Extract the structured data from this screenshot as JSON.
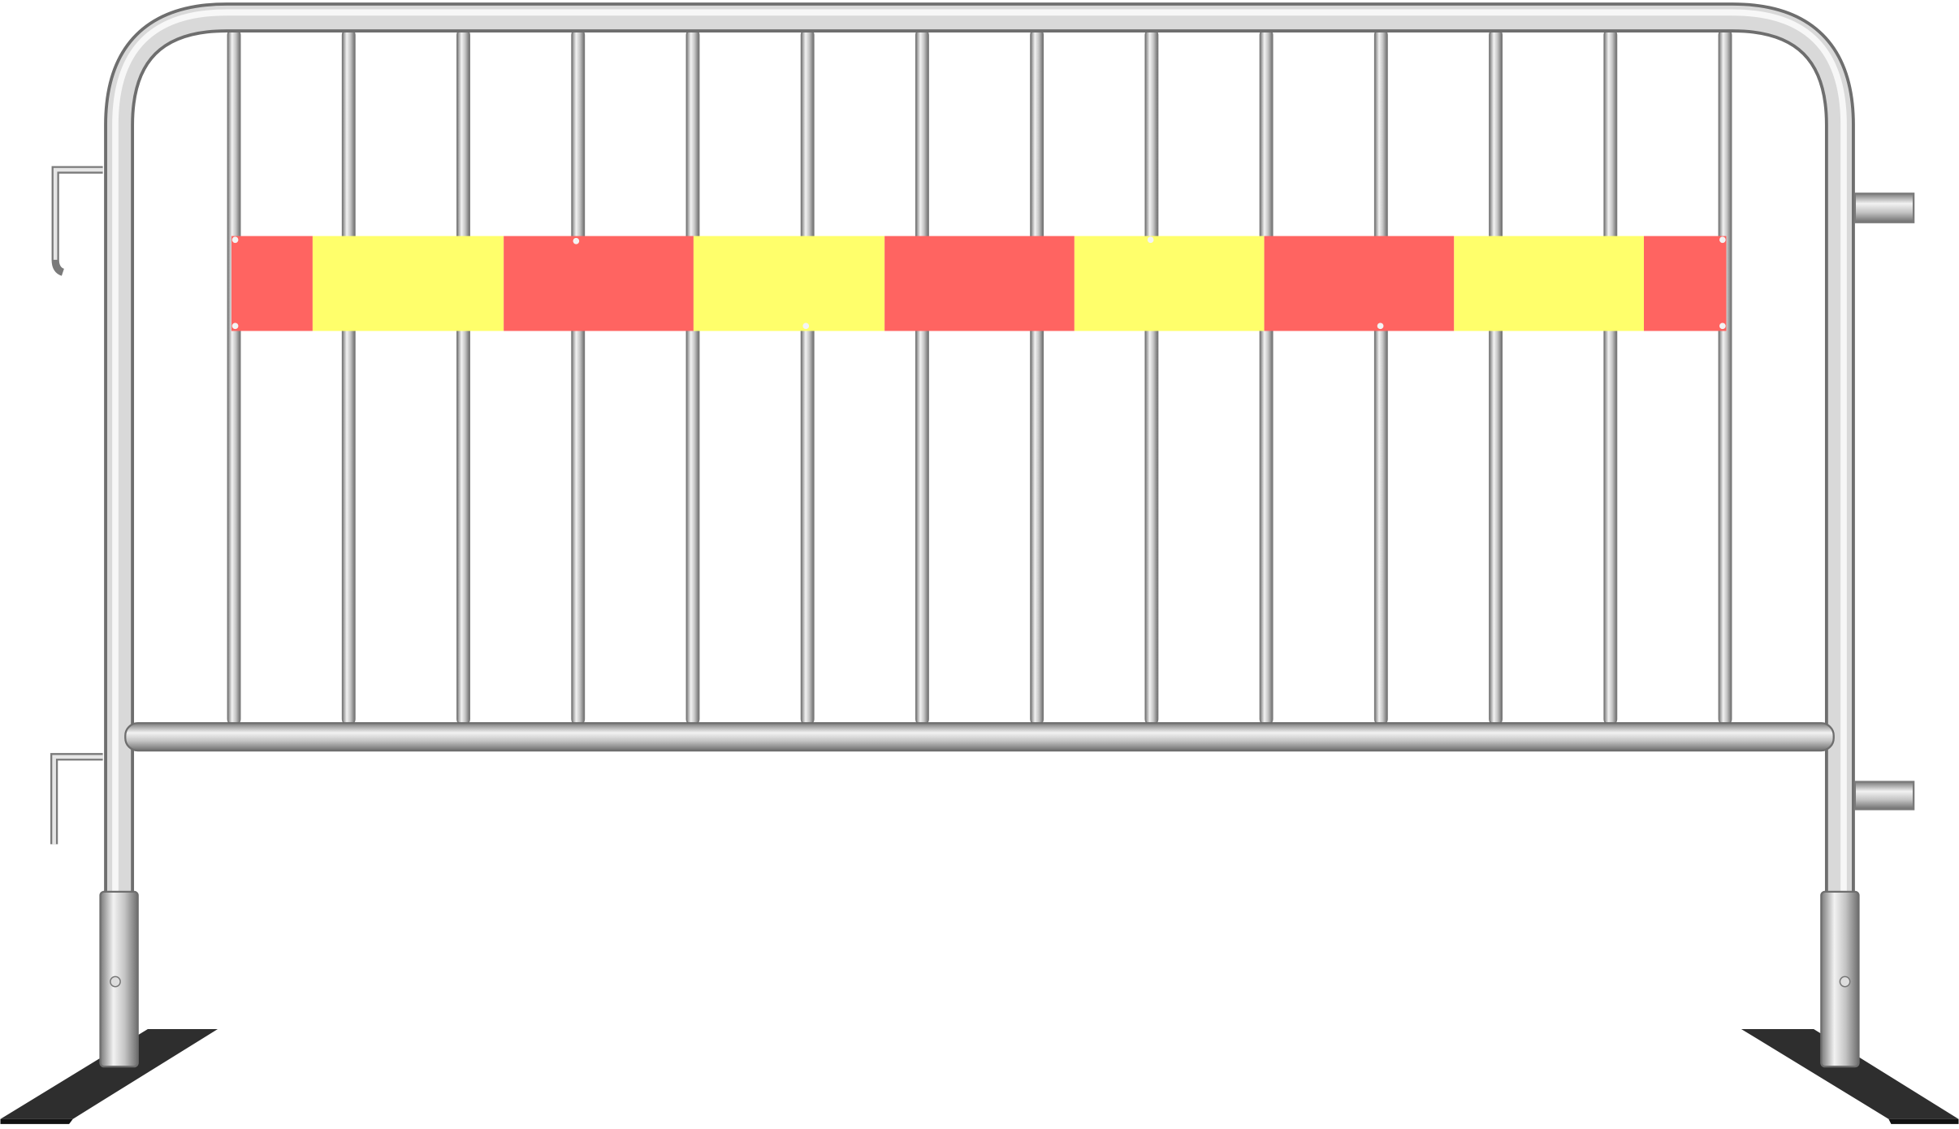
{
  "image": {
    "subject": "crowd-control-barrier",
    "colors": {
      "background": "#ffffff",
      "steel_light": "#f2f2f2",
      "steel_mid": "#c4c4c4",
      "steel_dark": "#7a7a7a",
      "banner_red": "#ff6461",
      "banner_yellow": "#ffff6b",
      "foot": "#2e2e2e"
    },
    "banner_pattern": [
      "red",
      "yellow",
      "red",
      "yellow",
      "red",
      "yellow",
      "red",
      "yellow",
      "red"
    ]
  }
}
